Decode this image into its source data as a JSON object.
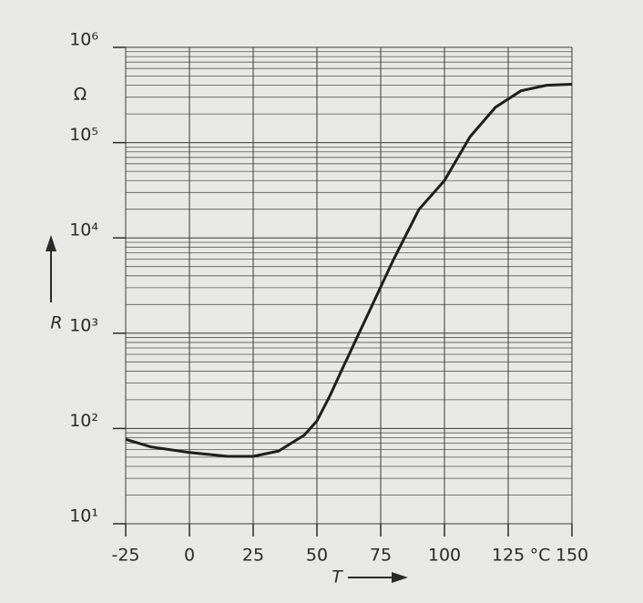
{
  "chart_data": {
    "type": "line",
    "x_label": "T",
    "y_label": "R",
    "x_unit": "°C",
    "y_unit": "Ω",
    "x": [
      -25,
      -15,
      0,
      15,
      25,
      35,
      45,
      50,
      55,
      60,
      65,
      70,
      75,
      80,
      90,
      100,
      110,
      120,
      130,
      140,
      150
    ],
    "series": [
      {
        "color": "#1e1e1e",
        "values": [
          77,
          64,
          56,
          51,
          51,
          58,
          85,
          120,
          218,
          425,
          820,
          1580,
          3060,
          5900,
          19900,
          40000,
          115000,
          235000,
          350000,
          400000,
          410000
        ]
      }
    ],
    "xlim": [
      -25,
      150
    ],
    "xticks": [
      -25,
      0,
      25,
      50,
      75,
      100,
      125,
      150
    ],
    "ylim": [
      10,
      1000000
    ],
    "log_y": true,
    "grid": true,
    "minor_grid": true,
    "yticks": [
      {
        "value": 10,
        "label": "10¹"
      },
      {
        "value": 100,
        "label": "10²"
      },
      {
        "value": 1000,
        "label": "10³"
      },
      {
        "value": 10000,
        "label": "10⁴"
      },
      {
        "value": 100000,
        "label": "10⁵"
      },
      {
        "value": 1000000,
        "label": "10⁶"
      }
    ]
  }
}
